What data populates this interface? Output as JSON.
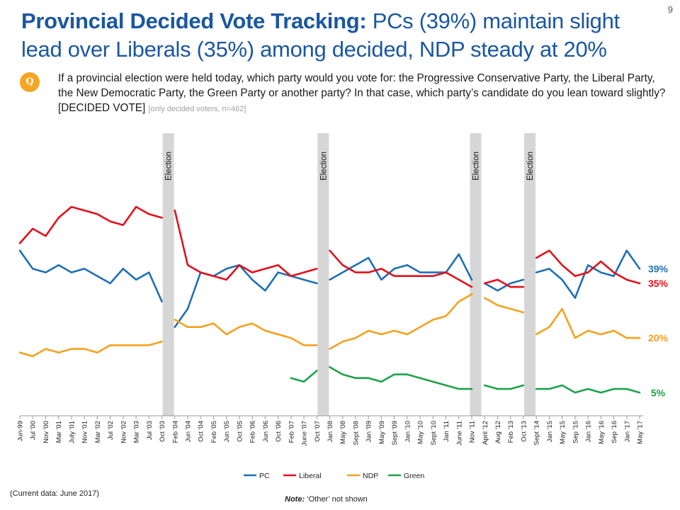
{
  "page_number": "9",
  "title": {
    "bold": "Provincial Decided Vote Tracking:",
    "rest": " PCs (39%) maintain slight lead over Liberals (35%) among decided, NDP steady at 20%"
  },
  "question": {
    "badge": "Q",
    "text": "If a provincial election were held today, which party would you vote for: the Progressive Conservative Party, the Liberal Party, the New Democratic Party, the Green Party or another party? In that case, which party’s candidate do you lean toward slightly? [DECIDED VOTE] ",
    "sample": "[only decided voters, n=462]"
  },
  "footnote": "(Current data: June 2017)",
  "note": {
    "label": "Note:",
    "text": " ‘Other’ not shown"
  },
  "chart_data": {
    "type": "line",
    "x_labels": [
      "Jun-99",
      "Jul '00",
      "Nov '00",
      "Mar '01",
      "July '01",
      "Nov '01",
      "Mar '02",
      "Jul '02",
      "Nov '02",
      "Mar '03",
      "Jul '03",
      "Oct '03",
      "Feb '04",
      "Jun '04",
      "Oct '04",
      "Feb '05",
      "Jun '05",
      "Oct '05",
      "Feb '06",
      "Jun '06",
      "Oct '06",
      "Feb '07",
      "June '07",
      "Oct '07",
      "Jan '08",
      "May '08",
      "Sept '08",
      "Jan '09",
      "May '09",
      "Sept '09",
      "Jan '10",
      "May '10",
      "Sept '10",
      "Jan '11",
      "June '11",
      "Nov '11",
      "April '12",
      "Aug '12",
      "Feb '13",
      "Oct '13",
      "Sept '14",
      "Jan '15",
      "May '15",
      "Sep '15",
      "Jan '16",
      "May '16",
      "Sep '16",
      "Jan '17",
      "May '17"
    ],
    "election_labels": [
      "Election",
      "Election",
      "Election",
      "Election"
    ],
    "elections": [
      {
        "after": 11,
        "label": "Election"
      },
      {
        "after": 23,
        "label": "Election"
      },
      {
        "after": 34.8,
        "label": "Election"
      },
      {
        "after": 39,
        "label": "Election"
      }
    ],
    "legend": [
      "PC",
      "Liberal",
      "NDP",
      "Green"
    ],
    "grid": false,
    "ylim": [
      0,
      70
    ],
    "series": [
      {
        "name": "PC",
        "color": "#1f6fb4",
        "end_label": "39%",
        "values": [
          44,
          39,
          38,
          40,
          38,
          39,
          37,
          35,
          39,
          36,
          38,
          30,
          23,
          28,
          38,
          37,
          39,
          40,
          36,
          33,
          38,
          37,
          36,
          35,
          36,
          38,
          40,
          42,
          36,
          39,
          40,
          38,
          38,
          38,
          43,
          36,
          35,
          33,
          35,
          36,
          38,
          39,
          36,
          31,
          40,
          38,
          37,
          44,
          39
        ]
      },
      {
        "name": "Liberal",
        "color": "#e3101b",
        "end_label": "35%",
        "values": [
          46,
          50,
          48,
          53,
          56,
          55,
          54,
          52,
          51,
          56,
          54,
          53,
          55,
          40,
          38,
          37,
          36,
          40,
          38,
          39,
          40,
          37,
          38,
          39,
          44,
          40,
          38,
          38,
          39,
          37,
          37,
          37,
          37,
          38,
          36,
          34,
          35,
          36,
          34,
          34,
          42,
          44,
          40,
          37,
          38,
          41,
          38,
          36,
          35
        ]
      },
      {
        "name": "NDP",
        "color": "#f5a11e",
        "end_label": "20%",
        "values": [
          16,
          15,
          17,
          16,
          17,
          17,
          16,
          18,
          18,
          18,
          18,
          19,
          25,
          23,
          23,
          24,
          21,
          23,
          24,
          22,
          21,
          20,
          18,
          18,
          17,
          19,
          20,
          22,
          21,
          22,
          21,
          23,
          25,
          26,
          30,
          32,
          31,
          29,
          28,
          27,
          21,
          23,
          28,
          20,
          22,
          21,
          22,
          20,
          20
        ]
      },
      {
        "name": "Green",
        "color": "#1ea34a",
        "end_label": "5%",
        "values": [
          null,
          null,
          null,
          null,
          null,
          null,
          null,
          null,
          null,
          null,
          null,
          null,
          null,
          null,
          null,
          null,
          null,
          null,
          null,
          null,
          null,
          9,
          8,
          11,
          12,
          10,
          9,
          9,
          8,
          10,
          10,
          9,
          8,
          7,
          6,
          6,
          7,
          6,
          6,
          7,
          6,
          6,
          7,
          5,
          6,
          5,
          6,
          6,
          5
        ]
      }
    ]
  }
}
